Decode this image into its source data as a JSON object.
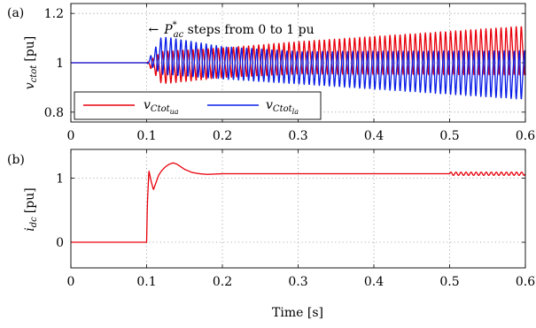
{
  "chart_data": [
    {
      "panel_label": "(a)",
      "type": "line",
      "ylabel": {
        "main": "v",
        "sub": "ctot",
        "unit": "[pu]"
      },
      "xlim": [
        0,
        0.6
      ],
      "ylim": [
        0.76,
        1.24
      ],
      "xticks": [
        "0",
        "0.1",
        "0.2",
        "0.3",
        "0.4",
        "0.5",
        "0.6"
      ],
      "xtick_values": [
        0,
        0.1,
        0.2,
        0.3,
        0.4,
        0.5,
        0.6
      ],
      "yticks": [
        "0.8",
        "1",
        "1.2"
      ],
      "ytick_values": [
        0.8,
        1.0,
        1.2
      ],
      "grid": true,
      "annotation": {
        "arrow": "←",
        "symbol": "P",
        "sup": "*",
        "sub": "ac",
        "text": " steps from 0 to 1 pu",
        "x": 0.1
      },
      "legend": {
        "placement": "bottom-left",
        "entries": [
          {
            "name": "v",
            "sub": "Ctot",
            "subsub": "ua",
            "color": "#e8000b"
          },
          {
            "name": "v",
            "sub": "Ctot",
            "subsub": "la",
            "color": "#0a1ee6"
          }
        ]
      },
      "series": [
        {
          "name": "v_Ctot_ua",
          "color": "#e8000b",
          "pre_step": {
            "x_range": [
              0,
              0.1
            ],
            "value": 1.0
          },
          "step_time": 0.1,
          "oscillation_freq_hz": 150,
          "envelope": {
            "x": [
              0.1,
              0.12,
              0.2,
              0.3,
              0.4,
              0.5,
              0.6
            ],
            "mean": [
              1.0,
              0.98,
              1.0,
              1.02,
              1.03,
              1.04,
              1.05
            ],
            "amplitude": [
              0.0,
              0.06,
              0.055,
              0.06,
              0.07,
              0.08,
              0.09
            ]
          }
        },
        {
          "name": "v_Ctot_la",
          "color": "#0a1ee6",
          "pre_step": {
            "x_range": [
              0,
              0.1
            ],
            "value": 1.0
          },
          "step_time": 0.1,
          "oscillation_freq_hz": 150,
          "envelope": {
            "x": [
              0.1,
              0.12,
              0.2,
              0.3,
              0.4,
              0.5,
              0.6
            ],
            "mean": [
              1.0,
              1.03,
              1.0,
              0.98,
              0.97,
              0.96,
              0.95
            ],
            "amplitude": [
              0.0,
              0.07,
              0.06,
              0.06,
              0.07,
              0.08,
              0.09
            ]
          }
        }
      ]
    },
    {
      "panel_label": "(b)",
      "type": "line",
      "ylabel": {
        "main": "i",
        "sub": "dc",
        "unit": "[pu]"
      },
      "xlabel": "Time [s]",
      "xlim": [
        0,
        0.6
      ],
      "ylim": [
        -0.4,
        1.45
      ],
      "xticks": [
        "0",
        "0.1",
        "0.2",
        "0.3",
        "0.4",
        "0.5",
        "0.6"
      ],
      "xtick_values": [
        0,
        0.1,
        0.2,
        0.3,
        0.4,
        0.5,
        0.6
      ],
      "yticks": [
        "0",
        "1"
      ],
      "ytick_values": [
        0,
        1
      ],
      "grid": true,
      "series": [
        {
          "name": "i_dc",
          "color": "#e8000b",
          "x": [
            0,
            0.1,
            0.101,
            0.103,
            0.106,
            0.109,
            0.112,
            0.116,
            0.12,
            0.125,
            0.13,
            0.135,
            0.14,
            0.15,
            0.16,
            0.17,
            0.18,
            0.2,
            0.25,
            0.3,
            0.4,
            0.5,
            0.6
          ],
          "y": [
            0,
            0,
            0.6,
            1.12,
            0.95,
            0.82,
            0.92,
            1.05,
            1.12,
            1.18,
            1.22,
            1.24,
            1.22,
            1.14,
            1.09,
            1.07,
            1.06,
            1.07,
            1.07,
            1.07,
            1.07,
            1.07,
            1.07
          ],
          "late_ripple": {
            "from_x": 0.5,
            "amplitude": 0.025,
            "freq_hz": 150
          }
        }
      ]
    }
  ]
}
